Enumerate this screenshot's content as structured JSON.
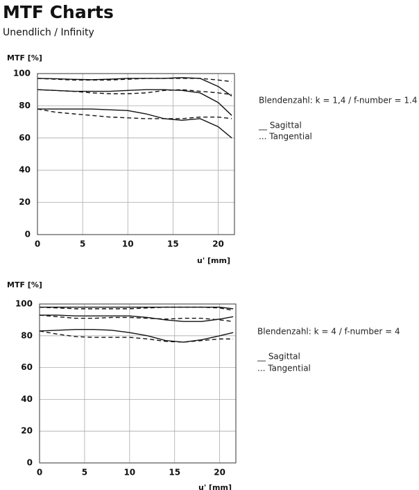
{
  "header": {
    "title": "MTF Charts",
    "subtitle": "Unendlich / Infinity"
  },
  "chart_data": [
    {
      "type": "line",
      "ylabel": "MTF [%]",
      "xlabel": "u' [mm]",
      "annotation": "Blendenzahl: k = 1,4 / f-number = 1.4",
      "legend": [
        "__ Sagittal",
        "... Tangential"
      ],
      "xlim": [
        0,
        21.8
      ],
      "ylim": [
        0,
        100
      ],
      "xticks": [
        0,
        5,
        10,
        15,
        20
      ],
      "yticks": [
        0,
        20,
        40,
        60,
        80,
        100
      ],
      "grid": true,
      "x": [
        0,
        2,
        4,
        6,
        8,
        10,
        12,
        14,
        16,
        18,
        20,
        21.5
      ],
      "series": [
        {
          "style": "solid",
          "color": "#111111",
          "values": [
            97,
            96.8,
            96.4,
            96.2,
            96.5,
            97,
            97,
            97,
            97.5,
            97,
            92,
            86
          ]
        },
        {
          "style": "dashed",
          "color": "#111111",
          "values": [
            97,
            96.5,
            96,
            96,
            96,
            96.5,
            97,
            97,
            97,
            97,
            96,
            95
          ]
        },
        {
          "style": "solid",
          "color": "#111111",
          "values": [
            90,
            89.5,
            89,
            89,
            89,
            89.5,
            90,
            90,
            89.5,
            88,
            82,
            74
          ]
        },
        {
          "style": "dashed",
          "color": "#111111",
          "values": [
            90,
            89.5,
            89,
            88,
            87.5,
            87.5,
            88,
            89.5,
            90,
            89,
            88,
            87
          ]
        },
        {
          "style": "solid",
          "color": "#111111",
          "values": [
            78,
            78,
            78,
            78,
            77.5,
            77,
            75,
            72,
            71,
            72,
            67,
            60
          ]
        },
        {
          "style": "dashed",
          "color": "#111111",
          "values": [
            78,
            76,
            75,
            74,
            73,
            72.5,
            72,
            72,
            72,
            73,
            73,
            72
          ]
        }
      ]
    },
    {
      "type": "line",
      "ylabel": "MTF [%]",
      "xlabel": "u' [mm]",
      "annotation": "Blendenzahl: k = 4 / f-number = 4",
      "legend": [
        "__ Sagittal",
        "... Tangential"
      ],
      "xlim": [
        0,
        21.8
      ],
      "ylim": [
        0,
        100
      ],
      "xticks": [
        0,
        5,
        10,
        15,
        20
      ],
      "yticks": [
        0,
        20,
        40,
        60,
        80,
        100
      ],
      "grid": true,
      "x": [
        0,
        2,
        4,
        6,
        8,
        10,
        12,
        14,
        16,
        18,
        20,
        21.5
      ],
      "series": [
        {
          "style": "solid",
          "color": "#111111",
          "values": [
            98,
            98,
            98,
            98,
            98,
            98,
            98,
            98,
            98,
            98,
            98,
            97
          ]
        },
        {
          "style": "dashed",
          "color": "#111111",
          "values": [
            98,
            97.5,
            97,
            97,
            97,
            97,
            97.5,
            98,
            98,
            98,
            97.5,
            96
          ]
        },
        {
          "style": "solid",
          "color": "#111111",
          "values": [
            93,
            93,
            92.5,
            92.5,
            92.5,
            92.5,
            91.5,
            90,
            89,
            89,
            90.5,
            92
          ]
        },
        {
          "style": "dashed",
          "color": "#111111",
          "values": [
            93,
            92,
            91,
            91,
            91.5,
            91.5,
            91,
            90.5,
            91,
            91,
            90,
            89
          ]
        },
        {
          "style": "solid",
          "color": "#111111",
          "values": [
            83,
            83.5,
            84,
            84,
            83.5,
            82,
            80,
            77,
            76,
            77.5,
            80,
            82
          ]
        },
        {
          "style": "dashed",
          "color": "#111111",
          "values": [
            83,
            81,
            79.5,
            79,
            79,
            79,
            78,
            76.5,
            76,
            77,
            78,
            78
          ]
        }
      ]
    }
  ]
}
